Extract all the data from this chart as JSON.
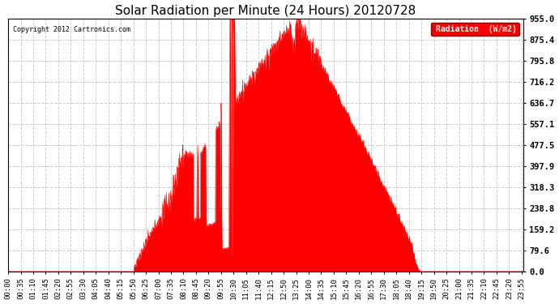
{
  "title": "Solar Radiation per Minute (24 Hours) 20120728",
  "copyright_text": "Copyright 2012 Cartronics.com",
  "legend_label": "Radiation  (W/m2)",
  "fill_color": "#FF0000",
  "line_color": "#FF0000",
  "background_color": "#FFFFFF",
  "grid_color": "#CCCCCC",
  "dashed_line_color": "#FF0000",
  "y_ticks": [
    0.0,
    79.6,
    159.2,
    238.8,
    318.3,
    397.9,
    477.5,
    557.1,
    636.7,
    716.2,
    795.8,
    875.4,
    955.0
  ],
  "ylim": [
    0,
    955.0
  ],
  "total_minutes": 1440,
  "sunrise_minute": 350,
  "sunset_minute": 1155,
  "peak_minute": 805,
  "peak_value": 955.0,
  "title_fontsize": 11,
  "axis_label_fontsize": 6.5,
  "ytick_fontsize": 7.5,
  "tick_step": 35
}
